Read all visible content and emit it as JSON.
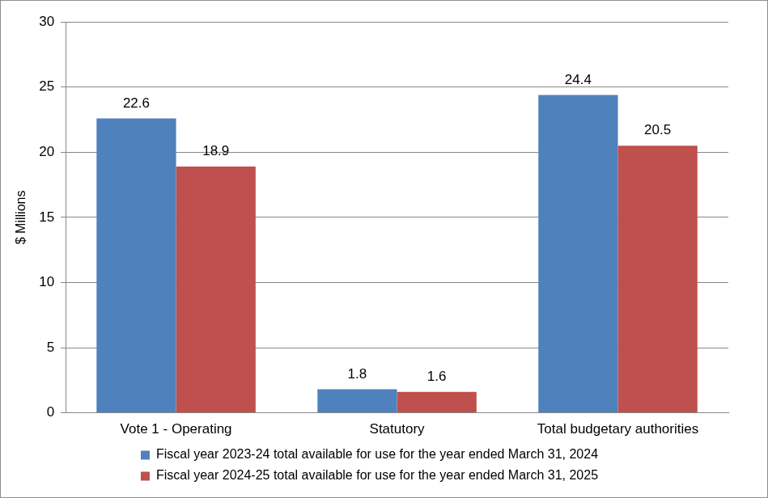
{
  "chart_data": {
    "type": "bar",
    "categories": [
      "Vote 1 - Operating",
      "Statutory",
      "Total budgetary authorities"
    ],
    "series": [
      {
        "name": "Fiscal year 2023-24 total available for use for the year ended March 31, 2024",
        "color": "#4F81BD",
        "values": [
          22.6,
          1.8,
          24.4
        ]
      },
      {
        "name": "Fiscal year 2024-25 total available for use for the year ended March 31, 2025",
        "color": "#C0504D",
        "values": [
          18.9,
          1.6,
          20.5
        ]
      }
    ],
    "ylabel": "$ Millions",
    "ylim": [
      0,
      30
    ],
    "yticks": [
      0,
      5,
      10,
      15,
      20,
      25,
      30
    ],
    "grid": true,
    "legend": "bottom",
    "data_labels": true
  }
}
